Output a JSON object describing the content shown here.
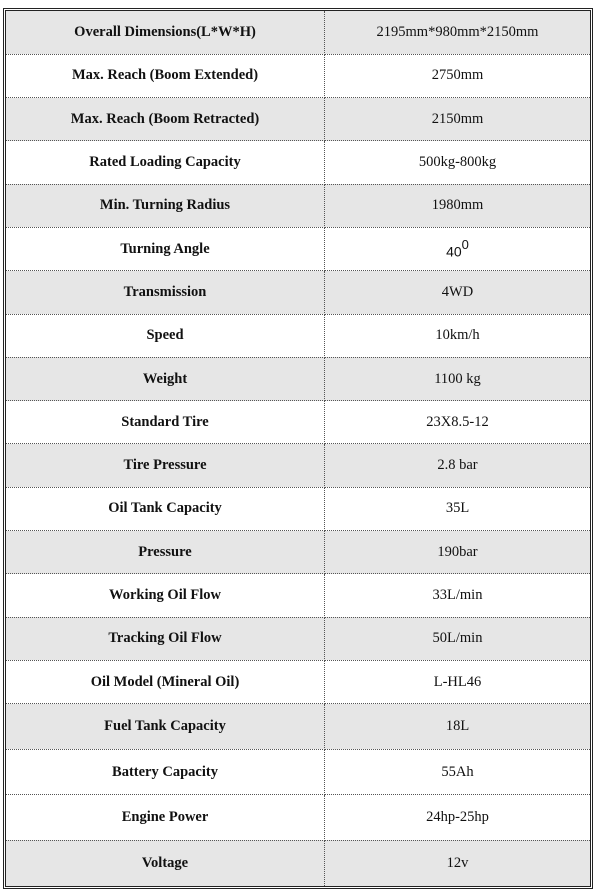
{
  "rows": [
    {
      "label": "Overall Dimensions(L*W*H)",
      "value": "2195mm*980mm*2150mm",
      "shaded": true
    },
    {
      "label": "Max. Reach (Boom Extended)",
      "value": "2750mm",
      "shaded": false
    },
    {
      "label": "Max. Reach (Boom Retracted)",
      "value": "2150mm",
      "shaded": true
    },
    {
      "label": "Rated Loading Capacity",
      "value": "500kg-800kg",
      "shaded": false
    },
    {
      "label": "Min. Turning Radius",
      "value": "1980mm",
      "shaded": true
    },
    {
      "label": "Turning Angle",
      "value": "40",
      "value_sup": "0",
      "shaded": false
    },
    {
      "label": "Transmission",
      "value": "4WD",
      "shaded": true
    },
    {
      "label": "Speed",
      "value": "10km/h",
      "shaded": false
    },
    {
      "label": "Weight",
      "value": "1100 kg",
      "shaded": true
    },
    {
      "label": "Standard Tire",
      "value": "23X8.5-12",
      "shaded": false
    },
    {
      "label": "Tire Pressure",
      "value": "2.8 bar",
      "shaded": true
    },
    {
      "label": "Oil Tank Capacity",
      "value": "35L",
      "shaded": false
    },
    {
      "label": "Pressure",
      "value": "190bar",
      "shaded": true
    },
    {
      "label": "Working Oil Flow",
      "value": "33L/min",
      "shaded": false
    },
    {
      "label": "Tracking Oil Flow",
      "value": "50L/min",
      "shaded": true
    },
    {
      "label": "Oil Model (Mineral Oil)",
      "value": "L-HL46",
      "shaded": false
    },
    {
      "label": "Fuel Tank Capacity",
      "value": "18L",
      "shaded": true
    },
    {
      "label": "Battery Capacity",
      "value": "55Ah",
      "shaded": false
    },
    {
      "label": "Engine Power",
      "value": "24hp-25hp",
      "shaded": false
    },
    {
      "label": "Voltage",
      "value": "12v",
      "shaded": true
    }
  ],
  "colors": {
    "shade": "#e6e6e6",
    "border": "#222222"
  }
}
